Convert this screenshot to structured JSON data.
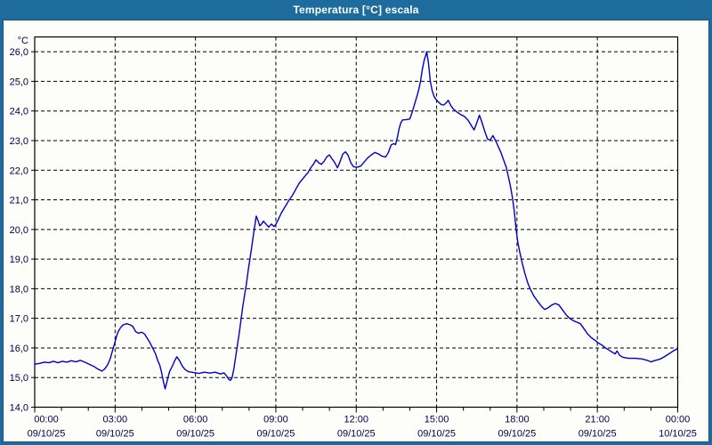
{
  "window": {
    "title": "Temperatura [°C] escala"
  },
  "colors": {
    "titlebar": "#1E6B9D",
    "title_text": "#ffffff",
    "plot_background": "#fdfdfa",
    "grid": "#000000",
    "frame": "#000000",
    "axis_text": "#00004D",
    "line": "#0000C8"
  },
  "chart_data": {
    "type": "line",
    "title": "Temperatura [°C] escala",
    "ylabel": "°C",
    "y_unit_label": "°C",
    "ylim": [
      14.0,
      26.5
    ],
    "x_range_minutes": [
      0,
      1440
    ],
    "grid": "dashed",
    "legend": "none",
    "y_ticks": [
      {
        "value": 26,
        "label": "26,0"
      },
      {
        "value": 25,
        "label": "25,0"
      },
      {
        "value": 24,
        "label": "24,0"
      },
      {
        "value": 23,
        "label": "23,0"
      },
      {
        "value": 22,
        "label": "22,0"
      },
      {
        "value": 21,
        "label": "21,0"
      },
      {
        "value": 20,
        "label": "20,0"
      },
      {
        "value": 19,
        "label": "19,0"
      },
      {
        "value": 18,
        "label": "18,0"
      },
      {
        "value": 17,
        "label": "17,0"
      },
      {
        "value": 16,
        "label": "16,0"
      },
      {
        "value": 15,
        "label": "15,0"
      },
      {
        "value": 14,
        "label": "14,0"
      }
    ],
    "x_ticks": [
      {
        "hour": 0,
        "time": "00:00",
        "date": "09/10/25"
      },
      {
        "hour": 3,
        "time": "03:00",
        "date": "09/10/25"
      },
      {
        "hour": 6,
        "time": "06:00",
        "date": "09/10/25"
      },
      {
        "hour": 9,
        "time": "09:00",
        "date": "09/10/25"
      },
      {
        "hour": 12,
        "time": "12:00",
        "date": "09/10/25"
      },
      {
        "hour": 15,
        "time": "15:00",
        "date": "09/10/25"
      },
      {
        "hour": 18,
        "time": "18:00",
        "date": "09/10/25"
      },
      {
        "hour": 21,
        "time": "21:00",
        "date": "09/10/25"
      },
      {
        "hour": 24,
        "time": "00:00",
        "date": "10/10/25"
      }
    ],
    "x_minor_tick_every_hours": 1,
    "series": [
      {
        "name": "Temperatura",
        "color": "#0000C8",
        "points": [
          [
            0,
            15.45
          ],
          [
            12,
            15.48
          ],
          [
            22,
            15.52
          ],
          [
            32,
            15.5
          ],
          [
            42,
            15.55
          ],
          [
            52,
            15.5
          ],
          [
            62,
            15.55
          ],
          [
            72,
            15.52
          ],
          [
            82,
            15.57
          ],
          [
            92,
            15.53
          ],
          [
            102,
            15.58
          ],
          [
            112,
            15.52
          ],
          [
            122,
            15.45
          ],
          [
            132,
            15.38
          ],
          [
            140,
            15.3
          ],
          [
            150,
            15.22
          ],
          [
            156,
            15.28
          ],
          [
            162,
            15.4
          ],
          [
            166,
            15.52
          ],
          [
            170,
            15.68
          ],
          [
            174,
            15.9
          ],
          [
            178,
            16.1
          ],
          [
            182,
            16.32
          ],
          [
            186,
            16.52
          ],
          [
            192,
            16.68
          ],
          [
            198,
            16.78
          ],
          [
            206,
            16.82
          ],
          [
            214,
            16.78
          ],
          [
            220,
            16.72
          ],
          [
            226,
            16.55
          ],
          [
            232,
            16.5
          ],
          [
            240,
            16.53
          ],
          [
            246,
            16.47
          ],
          [
            252,
            16.33
          ],
          [
            258,
            16.18
          ],
          [
            264,
            16.0
          ],
          [
            270,
            15.82
          ],
          [
            276,
            15.55
          ],
          [
            280,
            15.42
          ],
          [
            284,
            15.18
          ],
          [
            288,
            14.88
          ],
          [
            292,
            14.62
          ],
          [
            296,
            14.85
          ],
          [
            302,
            15.2
          ],
          [
            308,
            15.38
          ],
          [
            314,
            15.58
          ],
          [
            318,
            15.7
          ],
          [
            324,
            15.58
          ],
          [
            330,
            15.4
          ],
          [
            336,
            15.28
          ],
          [
            344,
            15.2
          ],
          [
            356,
            15.17
          ],
          [
            368,
            15.14
          ],
          [
            380,
            15.18
          ],
          [
            392,
            15.15
          ],
          [
            404,
            15.18
          ],
          [
            416,
            15.12
          ],
          [
            424,
            15.16
          ],
          [
            430,
            15.05
          ],
          [
            434,
            14.95
          ],
          [
            438,
            14.9
          ],
          [
            442,
            15.0
          ],
          [
            446,
            15.3
          ],
          [
            450,
            15.7
          ],
          [
            454,
            16.1
          ],
          [
            458,
            16.5
          ],
          [
            462,
            16.95
          ],
          [
            466,
            17.4
          ],
          [
            470,
            17.78
          ],
          [
            474,
            18.15
          ],
          [
            478,
            18.6
          ],
          [
            482,
            19.0
          ],
          [
            486,
            19.4
          ],
          [
            490,
            19.85
          ],
          [
            493,
            20.15
          ],
          [
            496,
            20.45
          ],
          [
            500,
            20.3
          ],
          [
            504,
            20.12
          ],
          [
            508,
            20.18
          ],
          [
            512,
            20.28
          ],
          [
            518,
            20.18
          ],
          [
            524,
            20.08
          ],
          [
            530,
            20.18
          ],
          [
            536,
            20.1
          ],
          [
            540,
            20.17
          ],
          [
            546,
            20.35
          ],
          [
            552,
            20.55
          ],
          [
            558,
            20.7
          ],
          [
            564,
            20.85
          ],
          [
            570,
            21.0
          ],
          [
            576,
            21.12
          ],
          [
            582,
            21.28
          ],
          [
            588,
            21.45
          ],
          [
            594,
            21.6
          ],
          [
            600,
            21.7
          ],
          [
            606,
            21.82
          ],
          [
            612,
            21.92
          ],
          [
            618,
            22.08
          ],
          [
            624,
            22.2
          ],
          [
            630,
            22.35
          ],
          [
            636,
            22.25
          ],
          [
            642,
            22.2
          ],
          [
            648,
            22.3
          ],
          [
            654,
            22.45
          ],
          [
            660,
            22.52
          ],
          [
            666,
            22.38
          ],
          [
            672,
            22.25
          ],
          [
            678,
            22.08
          ],
          [
            684,
            22.3
          ],
          [
            690,
            22.55
          ],
          [
            696,
            22.62
          ],
          [
            702,
            22.5
          ],
          [
            708,
            22.25
          ],
          [
            714,
            22.12
          ],
          [
            722,
            22.1
          ],
          [
            730,
            22.14
          ],
          [
            738,
            22.28
          ],
          [
            746,
            22.42
          ],
          [
            754,
            22.52
          ],
          [
            762,
            22.6
          ],
          [
            770,
            22.55
          ],
          [
            778,
            22.47
          ],
          [
            786,
            22.45
          ],
          [
            792,
            22.6
          ],
          [
            798,
            22.85
          ],
          [
            804,
            22.9
          ],
          [
            808,
            22.86
          ],
          [
            812,
            23.1
          ],
          [
            816,
            23.4
          ],
          [
            820,
            23.6
          ],
          [
            824,
            23.7
          ],
          [
            832,
            23.71
          ],
          [
            840,
            23.73
          ],
          [
            844,
            23.9
          ],
          [
            848,
            24.1
          ],
          [
            852,
            24.3
          ],
          [
            856,
            24.5
          ],
          [
            860,
            24.72
          ],
          [
            864,
            25.0
          ],
          [
            868,
            25.4
          ],
          [
            872,
            25.7
          ],
          [
            876,
            25.9
          ],
          [
            878,
            26.0
          ],
          [
            882,
            25.6
          ],
          [
            886,
            25.0
          ],
          [
            890,
            24.7
          ],
          [
            894,
            24.5
          ],
          [
            898,
            24.4
          ],
          [
            904,
            24.3
          ],
          [
            910,
            24.22
          ],
          [
            916,
            24.2
          ],
          [
            922,
            24.28
          ],
          [
            926,
            24.36
          ],
          [
            932,
            24.18
          ],
          [
            938,
            24.06
          ],
          [
            946,
            23.96
          ],
          [
            954,
            23.88
          ],
          [
            962,
            23.82
          ],
          [
            970,
            23.7
          ],
          [
            978,
            23.5
          ],
          [
            984,
            23.36
          ],
          [
            990,
            23.6
          ],
          [
            996,
            23.86
          ],
          [
            1002,
            23.6
          ],
          [
            1008,
            23.3
          ],
          [
            1014,
            23.05
          ],
          [
            1020,
            23.02
          ],
          [
            1026,
            23.17
          ],
          [
            1032,
            23.0
          ],
          [
            1038,
            22.8
          ],
          [
            1044,
            22.6
          ],
          [
            1050,
            22.35
          ],
          [
            1056,
            22.1
          ],
          [
            1062,
            21.7
          ],
          [
            1066,
            21.4
          ],
          [
            1070,
            21.05
          ],
          [
            1074,
            20.6
          ],
          [
            1078,
            20.0
          ],
          [
            1082,
            19.55
          ],
          [
            1086,
            19.25
          ],
          [
            1092,
            18.85
          ],
          [
            1098,
            18.5
          ],
          [
            1104,
            18.2
          ],
          [
            1110,
            17.98
          ],
          [
            1118,
            17.75
          ],
          [
            1126,
            17.58
          ],
          [
            1134,
            17.42
          ],
          [
            1142,
            17.3
          ],
          [
            1150,
            17.36
          ],
          [
            1158,
            17.45
          ],
          [
            1166,
            17.5
          ],
          [
            1174,
            17.45
          ],
          [
            1182,
            17.28
          ],
          [
            1190,
            17.12
          ],
          [
            1198,
            17.0
          ],
          [
            1206,
            16.92
          ],
          [
            1214,
            16.87
          ],
          [
            1222,
            16.82
          ],
          [
            1230,
            16.65
          ],
          [
            1238,
            16.48
          ],
          [
            1246,
            16.35
          ],
          [
            1254,
            16.27
          ],
          [
            1262,
            16.17
          ],
          [
            1270,
            16.1
          ],
          [
            1278,
            16.0
          ],
          [
            1286,
            15.93
          ],
          [
            1294,
            15.85
          ],
          [
            1300,
            15.8
          ],
          [
            1304,
            15.9
          ],
          [
            1310,
            15.75
          ],
          [
            1318,
            15.68
          ],
          [
            1330,
            15.65
          ],
          [
            1345,
            15.65
          ],
          [
            1360,
            15.63
          ],
          [
            1372,
            15.58
          ],
          [
            1380,
            15.53
          ],
          [
            1390,
            15.58
          ],
          [
            1400,
            15.62
          ],
          [
            1410,
            15.7
          ],
          [
            1420,
            15.8
          ],
          [
            1430,
            15.9
          ],
          [
            1438,
            15.96
          ]
        ]
      }
    ]
  }
}
